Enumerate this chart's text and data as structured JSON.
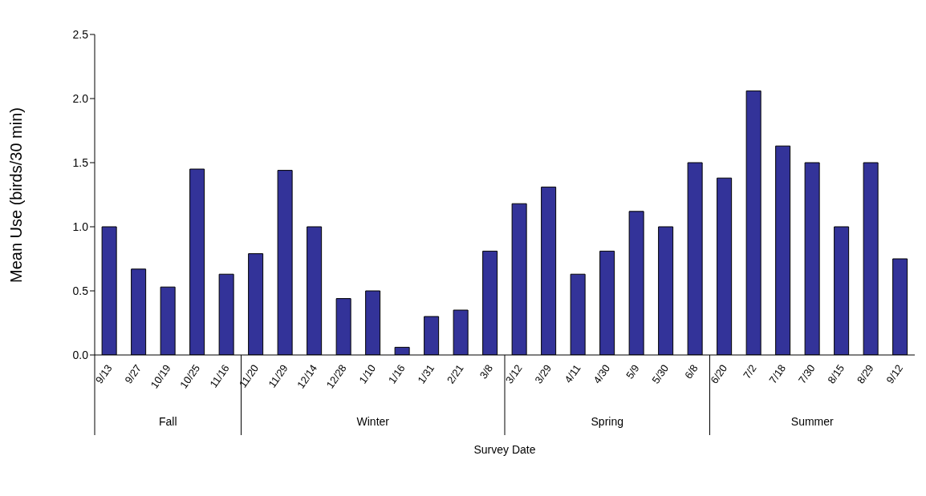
{
  "chart_data": {
    "type": "bar",
    "xlabel": "Survey Date",
    "ylabel": "Mean Use (birds/30 min)",
    "categories": [
      "9/13",
      "9/27",
      "10/19",
      "10/25",
      "11/16",
      "11/20",
      "11/29",
      "12/14",
      "12/28",
      "1/10",
      "1/16",
      "1/31",
      "2/21",
      "3/8",
      "3/12",
      "3/29",
      "4/11",
      "4/30",
      "5/9",
      "5/30",
      "6/8",
      "6/20",
      "7/2",
      "7/18",
      "7/30",
      "8/15",
      "8/29",
      "9/12"
    ],
    "values": [
      1.0,
      0.67,
      0.53,
      1.45,
      0.63,
      0.79,
      1.44,
      1.0,
      0.44,
      0.5,
      0.06,
      0.3,
      0.35,
      0.81,
      1.18,
      1.31,
      0.63,
      0.81,
      1.12,
      1.0,
      1.5,
      1.38,
      2.06,
      1.63,
      1.5,
      1.0,
      1.5,
      0.75
    ],
    "color": "#333399",
    "ylim": [
      0,
      2.5
    ],
    "yticks": [
      {
        "value": 0,
        "label": "0.0"
      },
      {
        "value": 0.5,
        "label": "0.5"
      },
      {
        "value": 1,
        "label": "1.0"
      },
      {
        "value": 1.5,
        "label": "1.5"
      },
      {
        "value": 2,
        "label": "2.0"
      },
      {
        "value": 2.5,
        "label": "2.5"
      }
    ],
    "annotations": [
      "Fall",
      "Winter",
      "Spring",
      "Summer"
    ],
    "grid": false,
    "legend": false
  }
}
